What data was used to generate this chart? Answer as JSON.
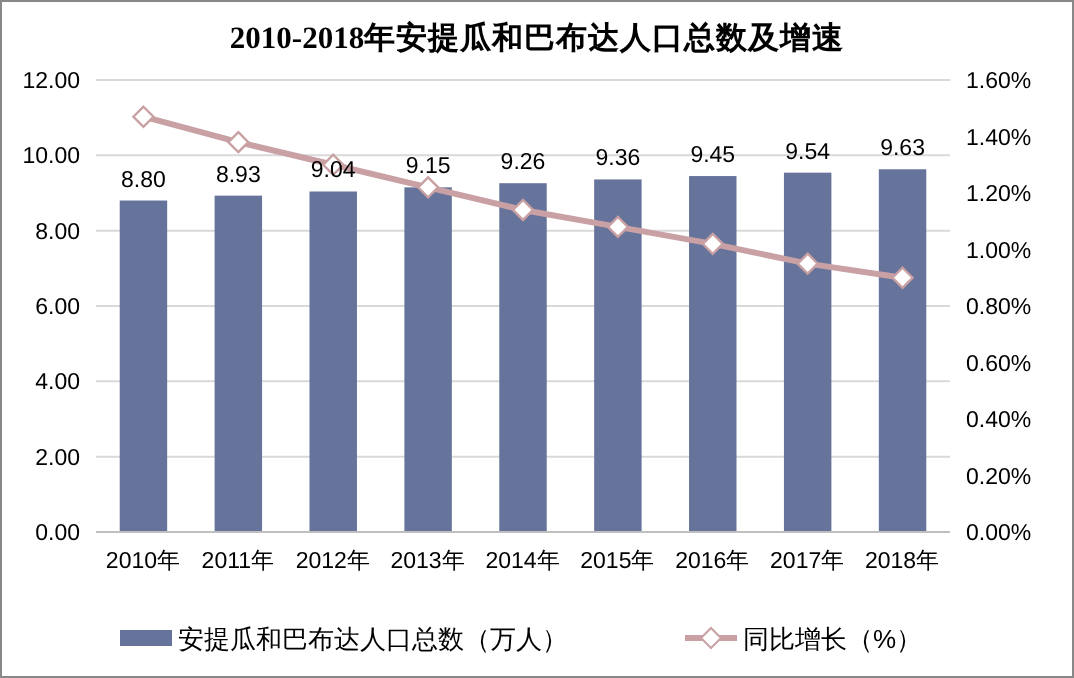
{
  "chart_data": {
    "type": "bar",
    "title": "2010-2018年安提瓜和巴布达人口总数及增速",
    "categories": [
      "2010年",
      "2011年",
      "2012年",
      "2013年",
      "2014年",
      "2015年",
      "2016年",
      "2017年",
      "2018年"
    ],
    "series": [
      {
        "name": "安提瓜和巴布达人口总数（万人）",
        "color": "#66739a",
        "values": [
          8.8,
          8.93,
          9.04,
          9.15,
          9.26,
          9.36,
          9.45,
          9.54,
          9.63
        ],
        "value_labels": [
          "8.80",
          "8.93",
          "9.04",
          "9.15",
          "9.26",
          "9.36",
          "9.45",
          "9.54",
          "9.63"
        ]
      },
      {
        "name": "同比增长（%）",
        "type": "line",
        "axis": "y2",
        "color": "#c9a0a3",
        "marker": "diamond",
        "values": [
          1.47,
          1.38,
          1.3,
          1.22,
          1.14,
          1.08,
          1.02,
          0.95,
          0.9
        ]
      }
    ],
    "ylim": [
      0,
      12
    ],
    "yticks": [
      {
        "value": 0,
        "label": "0.00"
      },
      {
        "value": 2,
        "label": "2.00"
      },
      {
        "value": 4,
        "label": "4.00"
      },
      {
        "value": 6,
        "label": "6.00"
      },
      {
        "value": 8,
        "label": "8.00"
      },
      {
        "value": 10,
        "label": "10.00"
      },
      {
        "value": 12,
        "label": "12.00"
      }
    ],
    "y2lim": [
      0,
      1.6
    ],
    "y2ticks": [
      {
        "value": 0,
        "label": "0.00%"
      },
      {
        "value": 0.2,
        "label": "0.20%"
      },
      {
        "value": 0.4,
        "label": "0.40%"
      },
      {
        "value": 0.6,
        "label": "0.60%"
      },
      {
        "value": 0.8,
        "label": "0.80%"
      },
      {
        "value": 1.0,
        "label": "1.00%"
      },
      {
        "value": 1.2,
        "label": "1.20%"
      },
      {
        "value": 1.4,
        "label": "1.40%"
      },
      {
        "value": 1.6,
        "label": "1.60%"
      }
    ],
    "grid": "y",
    "legend": "bottom"
  }
}
